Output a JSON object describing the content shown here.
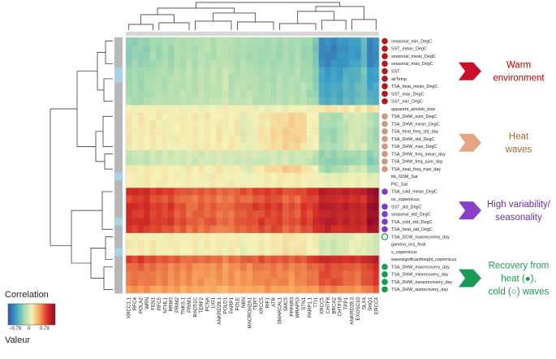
{
  "chart_data": {
    "type": "heatmap",
    "title": "",
    "colorbar": {
      "label": "Correlation",
      "sublabel": "Valeur",
      "min_label": "−0.79",
      "mid_label": "0",
      "max_label": "0.79",
      "min": -0.79,
      "max": 0.79,
      "colors": [
        "#3b52a5",
        "#3aa0c8",
        "#9fd8b0",
        "#f5f2b8",
        "#f7a25b",
        "#d73027",
        "#8f0b2b"
      ]
    },
    "columns": [
      "XRCC1.1",
      "RFC4",
      "POLA2",
      "WRN",
      "FEN1",
      "RFC5",
      "NTHL1",
      "RRM3",
      "PRIM2",
      "TNKS.1",
      "PRIM1",
      "RAD51C",
      "TERF2",
      "PCNA",
      "LIG1",
      "ANKRD28.1",
      "POLD1",
      "PARP1",
      "POLE",
      "NBN",
      "MACROH2A1",
      "TERT",
      "XRCC5",
      "RIF1",
      "ATR",
      "SMARCAL1",
      "SMC5",
      "PPP6R3",
      "WRAP53",
      "STN1",
      "PARP1.1",
      "TTI1",
      "XRCC5",
      "CHTF8",
      "BRCA2",
      "CHTF18",
      "TPP1",
      "ANKRD28.3",
      "EXOSC10",
      "SLX4",
      "SHQ1",
      "ERCC4"
    ],
    "rows": [
      {
        "label": "seasonal_min_DegC",
        "group": "warm",
        "marker": "dark-red-dot",
        "side": "gray"
      },
      {
        "label": "SST_mean_DegC",
        "group": "warm",
        "marker": "dark-red-dot",
        "side": "gray"
      },
      {
        "label": "seasonal_mean_DegC",
        "group": "warm",
        "marker": "dark-red-dot",
        "side": "gray"
      },
      {
        "label": "seasonal_max_DegC",
        "group": "warm",
        "marker": "dark-red-dot",
        "side": "gray"
      },
      {
        "label": "SST",
        "group": "warm",
        "marker": "dark-red-dot",
        "side": "blue"
      },
      {
        "label": "airTemp",
        "group": "warm",
        "marker": "dark-red-dot",
        "side": "blue"
      },
      {
        "label": "TSA_heat_mean_DegC",
        "group": "warm",
        "marker": "dark-red-dot",
        "side": "gray"
      },
      {
        "label": "SST_max_DegC",
        "group": "warm",
        "marker": "dark-red-dot",
        "side": "gray"
      },
      {
        "label": "SST_min_DegC",
        "group": "warm",
        "marker": "dark-red-dot",
        "side": "gray"
      },
      {
        "label": "apparent_windstr_bow",
        "group": "other",
        "marker": "none",
        "side": "gray"
      },
      {
        "label": "TSA_DHW_sum_DegC",
        "group": "heat",
        "marker": "tan-dot",
        "side": "gray"
      },
      {
        "label": "TSA_DHW_mean_DegC",
        "group": "heat",
        "marker": "tan-dot",
        "side": "gray"
      },
      {
        "label": "TSA_heat_freq_std_day",
        "group": "heat",
        "marker": "tan-dot",
        "side": "gray"
      },
      {
        "label": "TSA_DHW_std_DegC",
        "group": "heat",
        "marker": "tan-dot",
        "side": "gray"
      },
      {
        "label": "TSA_DHW_max_DegC",
        "group": "heat",
        "marker": "tan-dot",
        "side": "gray"
      },
      {
        "label": "TSA_DHW_freq_mean_day",
        "group": "heat",
        "marker": "tan-dot",
        "side": "gray"
      },
      {
        "label": "TSA_DHW_freq_sum_day",
        "group": "heat",
        "marker": "tan-dot",
        "side": "gray"
      },
      {
        "label": "TSA_heat_freq_max_day",
        "group": "heat",
        "marker": "tan-dot",
        "side": "gray"
      },
      {
        "label": "bb_GSM_Sat",
        "group": "other",
        "marker": "none",
        "side": "blue"
      },
      {
        "label": "PIC_Sat",
        "group": "other",
        "marker": "none",
        "side": "gray"
      },
      {
        "label": "TSA_cold_mean_DegC",
        "group": "var",
        "marker": "purple-dot",
        "side": "gray"
      },
      {
        "label": "oz_copernicus",
        "group": "other",
        "marker": "none",
        "side": "gray"
      },
      {
        "label": "SST_std_DegC",
        "group": "var",
        "marker": "purple-dot",
        "side": "gray"
      },
      {
        "label": "seasonal_std_DegC",
        "group": "var",
        "marker": "purple-dot",
        "side": "gray"
      },
      {
        "label": "TSA_cold_std_DegC",
        "group": "var",
        "marker": "purple-dot",
        "side": "blue"
      },
      {
        "label": "TSA_heat_std_DegC",
        "group": "var",
        "marker": "purple-dot",
        "side": "gray"
      },
      {
        "label": "TSA_DCW_maxrecovery_day",
        "group": "rec-cold",
        "marker": "green-ring",
        "side": "gray"
      },
      {
        "label": "gamma_ocs_final",
        "group": "other",
        "marker": "none",
        "side": "gray"
      },
      {
        "label": "v_copernicus",
        "group": "other",
        "marker": "none",
        "side": "blue"
      },
      {
        "label": "wavesignificantheight_copernicus",
        "group": "other",
        "marker": "none",
        "side": "gray"
      },
      {
        "label": "TSA_DHW_maxrecovery_day",
        "group": "rec-heat",
        "marker": "green-dot",
        "side": "gray"
      },
      {
        "label": "TSA_DHW_minrecovery_day",
        "group": "rec-heat",
        "marker": "green-dot",
        "side": "gray"
      },
      {
        "label": "TSA_DHW_meanrecovery_day",
        "group": "rec-heat",
        "marker": "green-dot",
        "side": "gray"
      },
      {
        "label": "TSA_DHW_lastrecovery_day",
        "group": "rec-heat",
        "marker": "green-dot",
        "side": "gray"
      }
    ],
    "groups": [
      {
        "key": "warm",
        "label_lines": [
          "Warm",
          "environment"
        ],
        "color": "#c00000",
        "arrow": "#c8102e",
        "rows": [
          0,
          8
        ]
      },
      {
        "key": "heat",
        "label_lines": [
          "Heat",
          "waves"
        ],
        "color": "#9c6a2e",
        "arrow": "#e3a582",
        "rows": [
          10,
          17
        ]
      },
      {
        "key": "var",
        "label_lines": [
          "High variability/",
          "seasonality"
        ],
        "color": "#7030a0",
        "arrow": "#8a3fc8",
        "rows": [
          20,
          25
        ]
      },
      {
        "key": "rec",
        "label_lines": [
          "Recovery from",
          "heat (●),",
          "cold (○) waves"
        ],
        "color": "#1a9a55",
        "arrow": "#1a9a55",
        "rows": [
          30,
          33
        ]
      }
    ],
    "marker_colors": {
      "dark-red-dot": "#b01c1c",
      "tan-dot": "#cc9a82",
      "purple-dot": "#7b3fc4",
      "green-dot": "#1a9a55",
      "green-ring": "#1a9a55"
    },
    "row_profiles": {
      "warm": [
        -0.3,
        -0.3,
        -0.3,
        -0.3,
        -0.25,
        -0.25,
        -0.25,
        -0.25,
        -0.22,
        -0.22,
        -0.22,
        -0.22,
        -0.2,
        -0.2,
        -0.2,
        -0.2,
        -0.18,
        -0.22,
        -0.22,
        -0.22,
        -0.22,
        -0.25,
        -0.25,
        -0.25,
        -0.25,
        -0.25,
        -0.25,
        -0.25,
        -0.25,
        -0.25,
        -0.3,
        -0.35,
        -0.62,
        -0.62,
        -0.62,
        -0.6,
        -0.55,
        -0.55,
        -0.52,
        -0.45,
        -0.62,
        -0.62
      ],
      "heat": [
        0.02,
        0.0,
        0.02,
        0.02,
        0.02,
        0.02,
        0.0,
        0.0,
        0.0,
        0.0,
        0.02,
        0.02,
        0.02,
        0.02,
        0.02,
        0.02,
        0.0,
        0.02,
        0.02,
        -0.05,
        -0.05,
        0.0,
        0.02,
        0.05,
        0.06,
        0.08,
        0.1,
        0.1,
        0.1,
        0.06,
        0.0,
        0.0,
        -0.2,
        -0.22,
        -0.22,
        -0.2,
        -0.12,
        -0.1,
        -0.1,
        -0.1,
        -0.2,
        -0.22
      ],
      "var": [
        0.55,
        0.55,
        0.55,
        0.55,
        0.5,
        0.5,
        0.5,
        0.5,
        0.45,
        0.45,
        0.42,
        0.42,
        0.42,
        0.42,
        0.42,
        0.4,
        0.38,
        0.4,
        0.42,
        0.45,
        0.45,
        0.48,
        0.5,
        0.5,
        0.5,
        0.48,
        0.45,
        0.45,
        0.45,
        0.5,
        0.5,
        0.55,
        0.65,
        0.65,
        0.62,
        0.62,
        0.62,
        0.62,
        0.6,
        0.6,
        0.75,
        0.79
      ],
      "rec": [
        0.5,
        0.5,
        0.5,
        0.48,
        0.45,
        0.45,
        0.45,
        0.42,
        0.42,
        0.4,
        0.4,
        0.4,
        0.38,
        0.38,
        0.38,
        0.38,
        0.36,
        0.38,
        0.38,
        0.4,
        0.4,
        0.42,
        0.45,
        0.45,
        0.45,
        0.45,
        0.42,
        0.42,
        0.42,
        0.45,
        0.48,
        0.5,
        0.58,
        0.58,
        0.58,
        0.55,
        0.55,
        0.52,
        0.52,
        0.55,
        0.62,
        0.68
      ]
    },
    "row_values": [
      {
        "p": "warm",
        "s": 0.95
      },
      {
        "p": "warm",
        "s": 1.0
      },
      {
        "p": "warm",
        "s": 1.0
      },
      {
        "p": "warm",
        "s": 0.95
      },
      {
        "p": "warm",
        "s": 0.85
      },
      {
        "p": "warm",
        "s": 0.85
      },
      {
        "p": "warm",
        "s": 0.8
      },
      {
        "p": "warm",
        "s": 0.8
      },
      {
        "p": "warm",
        "s": 0.75
      },
      {
        "p": "heat",
        "s": -0.2
      },
      {
        "p": "heat",
        "s": 1.0
      },
      {
        "p": "heat",
        "s": 1.0
      },
      {
        "p": "heat",
        "s": 1.2
      },
      {
        "p": "heat",
        "s": 1.1
      },
      {
        "p": "heat",
        "s": 1.0
      },
      {
        "p": "warm",
        "s": 0.45
      },
      {
        "p": "warm",
        "s": 0.5
      },
      {
        "p": "heat",
        "s": 1.2
      },
      {
        "p": "heat",
        "s": 0.3
      },
      {
        "p": "heat",
        "s": 0.2
      },
      {
        "p": "var",
        "s": 1.0
      },
      {
        "p": "var",
        "s": 0.9
      },
      {
        "p": "var",
        "s": 1.0
      },
      {
        "p": "var",
        "s": 0.95
      },
      {
        "p": "var",
        "s": 1.0
      },
      {
        "p": "var",
        "s": 0.9
      },
      {
        "p": "heat",
        "s": 0.4
      },
      {
        "p": "heat",
        "s": 0.6
      },
      {
        "p": "heat",
        "s": 0.5
      },
      {
        "p": "rec",
        "s": 1.0
      },
      {
        "p": "rec",
        "s": 0.8
      },
      {
        "p": "rec",
        "s": 0.75
      },
      {
        "p": "rec",
        "s": 0.75
      },
      {
        "p": "rec",
        "s": 0.6
      }
    ]
  }
}
